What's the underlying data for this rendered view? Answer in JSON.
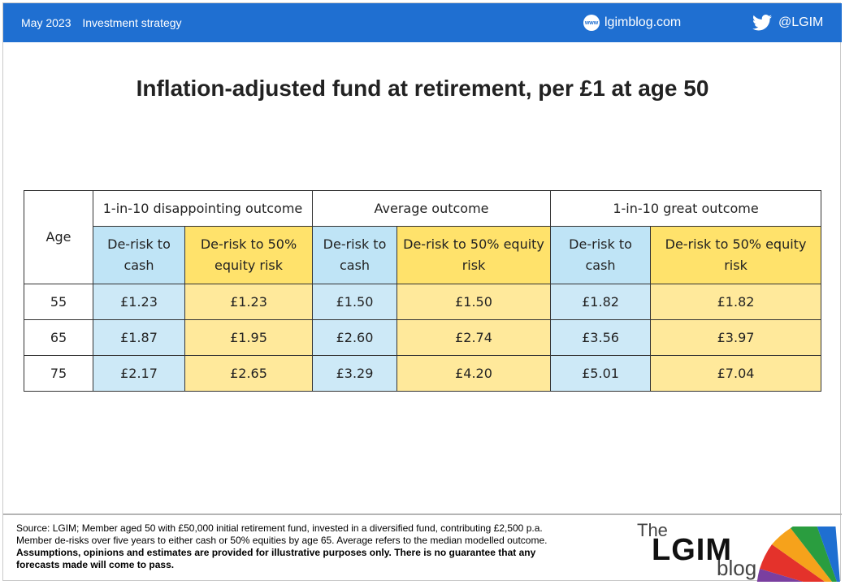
{
  "header": {
    "date": "May 2023",
    "category": "Investment strategy",
    "site": "lgimblog.com",
    "twitter": "@LGIM",
    "globe_text": "www",
    "accent_color": "#1f6fd1"
  },
  "chart_data": {
    "type": "table",
    "title": "Inflation-adjusted fund at retirement, per £1 at age 50",
    "row_header": "Age",
    "groups": [
      "1-in-10 disappointing outcome",
      "Average outcome",
      "1-in-10 great outcome"
    ],
    "strategies": [
      "De-risk to cash",
      "De-risk to 50% equity risk"
    ],
    "ages": [
      "55",
      "65",
      "75"
    ],
    "rows": [
      [
        "£1.23",
        "£1.23",
        "£1.50",
        "£1.50",
        "£1.82",
        "£1.82"
      ],
      [
        "£1.87",
        "£1.95",
        "£2.60",
        "£2.74",
        "£3.56",
        "£3.97"
      ],
      [
        "£2.17",
        "£2.65",
        "£3.29",
        "£4.20",
        "£5.01",
        "£7.04"
      ]
    ],
    "colors": {
      "cash": "#cde9f7",
      "equity": "#ffe99b"
    }
  },
  "footer": {
    "source_line1": "Source: LGIM; Member aged 50 with £50,000 initial retirement fund, invested in a diversified fund, contributing £2,500 p.a.",
    "source_line2": "Member de-risks over five years to either cash or 50% equities by age 65. Average refers to the median modelled outcome.",
    "disclaimer_line1": "Assumptions, opinions and estimates are provided for illustrative purposes only. There is no guarantee that any",
    "disclaimer_line2": "forecasts made will come to pass."
  },
  "logo": {
    "the": "The",
    "lgim": "LGIM",
    "blog": "blog"
  }
}
